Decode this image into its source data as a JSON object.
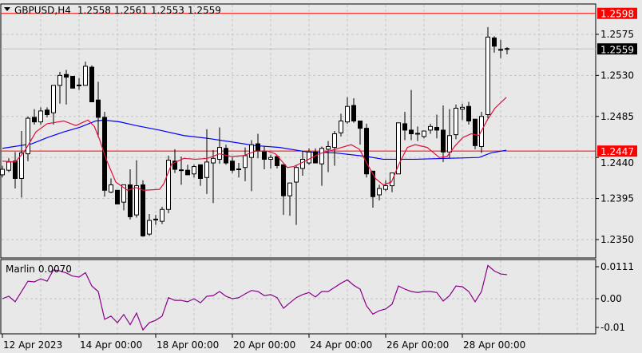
{
  "header": {
    "symbol": "GBPUSD,H4",
    "open": "1.2558",
    "high": "1.2561",
    "low": "1.2553",
    "close": "1.2559",
    "menu_icon": "triangle-down-icon"
  },
  "price_axis": {
    "labels": [
      "1.2575",
      "1.2530",
      "1.2485",
      "1.2440",
      "1.2395",
      "1.2350"
    ],
    "values": [
      1.2575,
      1.253,
      1.2485,
      1.244,
      1.2395,
      1.235
    ]
  },
  "levels": {
    "upper": {
      "label": "1.2598",
      "value": 1.2598,
      "color": "#ff0000"
    },
    "lower": {
      "label": "1.2447",
      "value": 1.2447,
      "color": "#ff0000"
    },
    "bid": {
      "label": "1.2559",
      "value": 1.2559
    }
  },
  "time_axis": [
    "12 Apr 2023",
    "14 Apr 00:00",
    "18 Apr 00:00",
    "20 Apr 00:00",
    "24 Apr 00:00",
    "26 Apr 00:00",
    "28 Apr 00:00"
  ],
  "time_axis_bar_index": [
    0,
    12,
    24,
    36,
    48,
    60,
    72
  ],
  "indicator": {
    "name": "Marlin",
    "value": "0.0070",
    "axis_labels": [
      "0.0111",
      "0.00",
      "-0.01"
    ],
    "color": "#8b008b"
  },
  "colors": {
    "ma_fast": "#e0103a",
    "ma_slow": "#0000ff",
    "bull": "#ffffff",
    "bear": "#000000"
  },
  "chart_data": {
    "type": "candlestick",
    "ohlc": [
      [
        1.2421,
        1.2431,
        1.2418,
        1.2427
      ],
      [
        1.2426,
        1.2439,
        1.2424,
        1.2435
      ],
      [
        1.2436,
        1.2446,
        1.2406,
        1.2417
      ],
      [
        1.2417,
        1.2469,
        1.2396,
        1.2445
      ],
      [
        1.2444,
        1.2485,
        1.2436,
        1.2483
      ],
      [
        1.2484,
        1.2493,
        1.2476,
        1.2479
      ],
      [
        1.2479,
        1.2495,
        1.2476,
        1.2491
      ],
      [
        1.2492,
        1.2495,
        1.2484,
        1.2487
      ],
      [
        1.2489,
        1.2519,
        1.2476,
        1.2519
      ],
      [
        1.2519,
        1.2534,
        1.2499,
        1.253
      ],
      [
        1.2531,
        1.2536,
        1.2498,
        1.2528
      ],
      [
        1.2529,
        1.2529,
        1.2516,
        1.2516
      ],
      [
        1.2519,
        1.2527,
        1.2514,
        1.2518
      ],
      [
        1.2519,
        1.2545,
        1.2519,
        1.254
      ],
      [
        1.2539,
        1.2541,
        1.2501,
        1.2501
      ],
      [
        1.2503,
        1.2523,
        1.2462,
        1.2484
      ],
      [
        1.2484,
        1.249,
        1.2397,
        1.2404
      ],
      [
        1.2402,
        1.2417,
        1.2401,
        1.241
      ],
      [
        1.2404,
        1.2404,
        1.2389,
        1.2389
      ],
      [
        1.2391,
        1.241,
        1.2382,
        1.241
      ],
      [
        1.241,
        1.2427,
        1.2372,
        1.2375
      ],
      [
        1.2377,
        1.2437,
        1.2374,
        1.2409
      ],
      [
        1.241,
        1.2415,
        1.2353,
        1.2354
      ],
      [
        1.2356,
        1.2378,
        1.2354,
        1.2371
      ],
      [
        1.2371,
        1.2377,
        1.2366,
        1.2372
      ],
      [
        1.237,
        1.2386,
        1.2367,
        1.2383
      ],
      [
        1.2383,
        1.2442,
        1.2379,
        1.2437
      ],
      [
        1.2436,
        1.2449,
        1.2423,
        1.2427
      ],
      [
        1.2426,
        1.2441,
        1.241,
        1.2425
      ],
      [
        1.2426,
        1.2432,
        1.2421,
        1.2421
      ],
      [
        1.2422,
        1.2432,
        1.2418,
        1.243
      ],
      [
        1.2432,
        1.2432,
        1.2409,
        1.2417
      ],
      [
        1.2418,
        1.2471,
        1.24,
        1.2435
      ],
      [
        1.2434,
        1.2448,
        1.239,
        1.2439
      ],
      [
        1.2438,
        1.2473,
        1.2433,
        1.2451
      ],
      [
        1.245,
        1.2454,
        1.2432,
        1.2434
      ],
      [
        1.2436,
        1.244,
        1.2423,
        1.2426
      ],
      [
        1.2427,
        1.2434,
        1.2418,
        1.2427
      ],
      [
        1.2429,
        1.2451,
        1.2414,
        1.2442
      ],
      [
        1.244,
        1.2459,
        1.2403,
        1.2454
      ],
      [
        1.2455,
        1.2466,
        1.2439,
        1.2447
      ],
      [
        1.2447,
        1.2452,
        1.2427,
        1.2438
      ],
      [
        1.2438,
        1.2443,
        1.2428,
        1.244
      ],
      [
        1.2441,
        1.2443,
        1.2428,
        1.2431
      ],
      [
        1.2432,
        1.2432,
        1.2377,
        1.2398
      ],
      [
        1.2398,
        1.2412,
        1.2376,
        1.2412
      ],
      [
        1.2413,
        1.2431,
        1.2366,
        1.2429
      ],
      [
        1.2428,
        1.2447,
        1.242,
        1.2438
      ],
      [
        1.2434,
        1.245,
        1.2432,
        1.2446
      ],
      [
        1.2446,
        1.245,
        1.2434,
        1.2434
      ],
      [
        1.2433,
        1.2452,
        1.2409,
        1.245
      ],
      [
        1.2449,
        1.2458,
        1.2424,
        1.2452
      ],
      [
        1.2451,
        1.2469,
        1.2431,
        1.2466
      ],
      [
        1.2467,
        1.2488,
        1.2463,
        1.248
      ],
      [
        1.2479,
        1.2506,
        1.2477,
        1.2496
      ],
      [
        1.2497,
        1.2505,
        1.2478,
        1.248
      ],
      [
        1.248,
        1.248,
        1.2454,
        1.2472
      ],
      [
        1.2472,
        1.2477,
        1.2418,
        1.2422
      ],
      [
        1.2425,
        1.2425,
        1.2385,
        1.2397
      ],
      [
        1.2399,
        1.241,
        1.2393,
        1.2406
      ],
      [
        1.2405,
        1.2415,
        1.2403,
        1.2409
      ],
      [
        1.2409,
        1.2423,
        1.2402,
        1.2423
      ],
      [
        1.2422,
        1.2478,
        1.2422,
        1.2478
      ],
      [
        1.2477,
        1.249,
        1.2459,
        1.247
      ],
      [
        1.247,
        1.2514,
        1.2459,
        1.2466
      ],
      [
        1.2466,
        1.2474,
        1.2458,
        1.2465
      ],
      [
        1.2463,
        1.2469,
        1.2461,
        1.2469
      ],
      [
        1.247,
        1.2477,
        1.2466,
        1.2474
      ],
      [
        1.2473,
        1.2487,
        1.2461,
        1.247
      ],
      [
        1.247,
        1.2497,
        1.2435,
        1.2446
      ],
      [
        1.2446,
        1.2493,
        1.2439,
        1.2464
      ],
      [
        1.2465,
        1.2498,
        1.246,
        1.2494
      ],
      [
        1.2493,
        1.2499,
        1.2481,
        1.2495
      ],
      [
        1.2496,
        1.2501,
        1.2476,
        1.248
      ],
      [
        1.2482,
        1.2482,
        1.2449,
        1.2453
      ],
      [
        1.2452,
        1.249,
        1.2445,
        1.2485
      ],
      [
        1.2487,
        1.2583,
        1.2483,
        1.2572
      ],
      [
        1.2571,
        1.2573,
        1.2555,
        1.2562
      ],
      [
        1.2557,
        1.2569,
        1.2549,
        1.2558
      ],
      [
        1.2558,
        1.2561,
        1.2553,
        1.2559
      ]
    ],
    "ma_fast": [
      [
        0,
        1.2436
      ],
      [
        2,
        1.2435
      ],
      [
        3.4,
        1.2446
      ],
      [
        5.25,
        1.2468
      ],
      [
        7,
        1.2477
      ],
      [
        9.6,
        1.248
      ],
      [
        11.5,
        1.2475
      ],
      [
        13.4,
        1.2481
      ],
      [
        14.4,
        1.2474
      ],
      [
        15.25,
        1.2459
      ],
      [
        16.25,
        1.2438
      ],
      [
        17.75,
        1.2413
      ],
      [
        19.6,
        1.2404
      ],
      [
        20.9,
        1.2407
      ],
      [
        22.1,
        1.2404
      ],
      [
        24.6,
        1.2405
      ],
      [
        25.25,
        1.2411
      ],
      [
        26.5,
        1.2433
      ],
      [
        28.4,
        1.2439
      ],
      [
        30.25,
        1.2438
      ],
      [
        32.1,
        1.2439
      ],
      [
        34,
        1.2444
      ],
      [
        35.9,
        1.2441
      ],
      [
        37.75,
        1.2442
      ],
      [
        39.6,
        1.2447
      ],
      [
        41.5,
        1.2447
      ],
      [
        42.75,
        1.2444
      ],
      [
        44.6,
        1.2429
      ],
      [
        45.6,
        1.243
      ],
      [
        47.1,
        1.2435
      ],
      [
        49.6,
        1.2444
      ],
      [
        52.1,
        1.2449
      ],
      [
        54.6,
        1.2454
      ],
      [
        55.9,
        1.2449
      ],
      [
        57.1,
        1.2433
      ],
      [
        58.4,
        1.2417
      ],
      [
        59.6,
        1.241
      ],
      [
        60.9,
        1.2413
      ],
      [
        62.1,
        1.2433
      ],
      [
        63.4,
        1.2451
      ],
      [
        64.6,
        1.2454
      ],
      [
        66.5,
        1.2451
      ],
      [
        68.4,
        1.244
      ],
      [
        69.6,
        1.2441
      ],
      [
        70.9,
        1.2453
      ],
      [
        72.1,
        1.2462
      ],
      [
        73.4,
        1.2466
      ],
      [
        74.6,
        1.2464
      ],
      [
        75.9,
        1.2481
      ],
      [
        77.1,
        1.2494
      ],
      [
        78.9,
        1.2506
      ]
    ],
    "ma_slow": [
      [
        0,
        1.245
      ],
      [
        4.6,
        1.2455
      ],
      [
        7.1,
        1.2462
      ],
      [
        9.6,
        1.2468
      ],
      [
        12.1,
        1.2473
      ],
      [
        14.6,
        1.248
      ],
      [
        15.9,
        1.2481
      ],
      [
        18.4,
        1.2479
      ],
      [
        20.9,
        1.2475
      ],
      [
        24.6,
        1.247
      ],
      [
        28.4,
        1.2464
      ],
      [
        32.1,
        1.2461
      ],
      [
        35.9,
        1.2457
      ],
      [
        39.6,
        1.2453
      ],
      [
        43.4,
        1.2451
      ],
      [
        47.75,
        1.2446
      ],
      [
        52.1,
        1.2445
      ],
      [
        57.1,
        1.2441
      ],
      [
        59.6,
        1.2438
      ],
      [
        64.6,
        1.2438
      ],
      [
        69.6,
        1.2439
      ],
      [
        74.6,
        1.244
      ],
      [
        76.5,
        1.2445
      ],
      [
        78.9,
        1.2448
      ]
    ],
    "marlin": [
      0.0,
      0.0007,
      -0.0009,
      0.0021,
      0.0051,
      0.0049,
      0.0058,
      0.0051,
      0.0084,
      0.0081,
      0.0075,
      0.0066,
      0.0063,
      0.0076,
      0.0037,
      0.0021,
      -0.006,
      -0.0051,
      -0.007,
      -0.0046,
      -0.0076,
      -0.0042,
      -0.0091,
      -0.007,
      -0.0063,
      -0.0051,
      0.0003,
      -0.0005,
      -0.0005,
      -0.0009,
      0.0,
      -0.0012,
      0.0007,
      0.0009,
      0.0021,
      0.0007,
      0.0,
      0.0003,
      0.0014,
      0.0024,
      0.0021,
      0.0009,
      0.0012,
      0.0003,
      -0.0028,
      -0.0012,
      0.0003,
      0.0012,
      0.0018,
      0.0005,
      0.0021,
      0.0021,
      0.0033,
      0.0045,
      0.0055,
      0.0039,
      0.0028,
      -0.0021,
      -0.0045,
      -0.0035,
      -0.003,
      -0.0016,
      0.0037,
      0.0028,
      0.0021,
      0.0018,
      0.0021,
      0.0021,
      0.0018,
      -0.0007,
      0.0009,
      0.0037,
      0.0035,
      0.0021,
      -0.0009,
      0.0021,
      0.0097,
      0.0081,
      0.0072,
      0.007
    ],
    "price_range": [
      1.234,
      1.261
    ],
    "marlin_range": [
      -0.0103,
      0.0112
    ]
  }
}
